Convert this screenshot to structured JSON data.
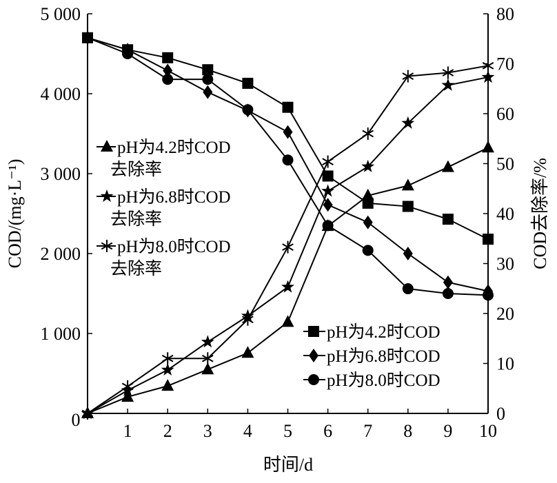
{
  "chart_data": {
    "type": "line",
    "title": "",
    "xlabel": "时间/d",
    "ylabel": "COD/(mg·L⁻¹)",
    "y2label": "COD去除率/%",
    "x": [
      0,
      1,
      2,
      3,
      4,
      5,
      6,
      7,
      8,
      9,
      10
    ],
    "x_ticks": [
      "1",
      "2",
      "3",
      "4",
      "5",
      "6",
      "7",
      "8",
      "9",
      "10"
    ],
    "x_origin_label": "0",
    "xlim": [
      0,
      10
    ],
    "ylim": [
      0,
      5000
    ],
    "y_ticks": [
      "1 000",
      "2 000",
      "3 000",
      "4 000",
      "5 000"
    ],
    "y_tick_values": [
      1000,
      2000,
      3000,
      4000,
      5000
    ],
    "y2lim": [
      0,
      80
    ],
    "y2_ticks": [
      "0",
      "10",
      "20",
      "30",
      "40",
      "50",
      "60",
      "70",
      "80"
    ],
    "y2_tick_values": [
      0,
      10,
      20,
      30,
      40,
      50,
      60,
      70,
      80
    ],
    "grid": false,
    "series": [
      {
        "name": "pH为4.2时COD",
        "axis": "left",
        "marker": "square",
        "values": [
          4700,
          4550,
          4450,
          4300,
          4130,
          3830,
          2970,
          2630,
          2590,
          2430,
          2180
        ]
      },
      {
        "name": "pH为6.8时COD",
        "axis": "left",
        "marker": "diamond",
        "values": [
          4700,
          4550,
          4290,
          4020,
          3790,
          3520,
          2610,
          2390,
          2000,
          1640,
          1530
        ]
      },
      {
        "name": "pH为8.0时COD",
        "axis": "left",
        "marker": "circle",
        "values": [
          4700,
          4500,
          4180,
          4180,
          3800,
          3170,
          2350,
          2040,
          1560,
          1500,
          1480
        ]
      },
      {
        "name": "pH为4.2时COD去除率",
        "axis": "right",
        "marker": "triangle",
        "values": [
          0,
          3.3,
          5.5,
          8.8,
          12.1,
          18.3,
          37.5,
          43.6,
          45.6,
          49.3,
          53.2
        ]
      },
      {
        "name": "pH为6.8时COD去除率",
        "axis": "right",
        "marker": "star",
        "values": [
          0,
          4.6,
          8.7,
          14.3,
          19.5,
          25.3,
          44.5,
          49.4,
          58.1,
          65.7,
          67.3
        ]
      },
      {
        "name": "pH为8.0时COD去除率",
        "axis": "right",
        "marker": "asterisk",
        "values": [
          0,
          5.4,
          11.0,
          11.0,
          18.8,
          33.3,
          50.4,
          56.0,
          67.5,
          68.2,
          69.6
        ]
      }
    ],
    "legend_left": {
      "placement": "upper-left",
      "entries": [
        {
          "line1": "pH为4.2时COD",
          "line2": "去除率",
          "marker": "triangle"
        },
        {
          "line1": "pH为6.8时COD",
          "line2": "去除率",
          "marker": "star"
        },
        {
          "line1": "pH为8.0时COD",
          "line2": "去除率",
          "marker": "asterisk"
        }
      ]
    },
    "legend_right": {
      "placement": "lower-right",
      "entries": [
        {
          "label": "pH为4.2时COD",
          "marker": "square"
        },
        {
          "label": "pH为6.8时COD",
          "marker": "diamond"
        },
        {
          "label": "pH为8.0时COD",
          "marker": "circle"
        }
      ]
    }
  }
}
